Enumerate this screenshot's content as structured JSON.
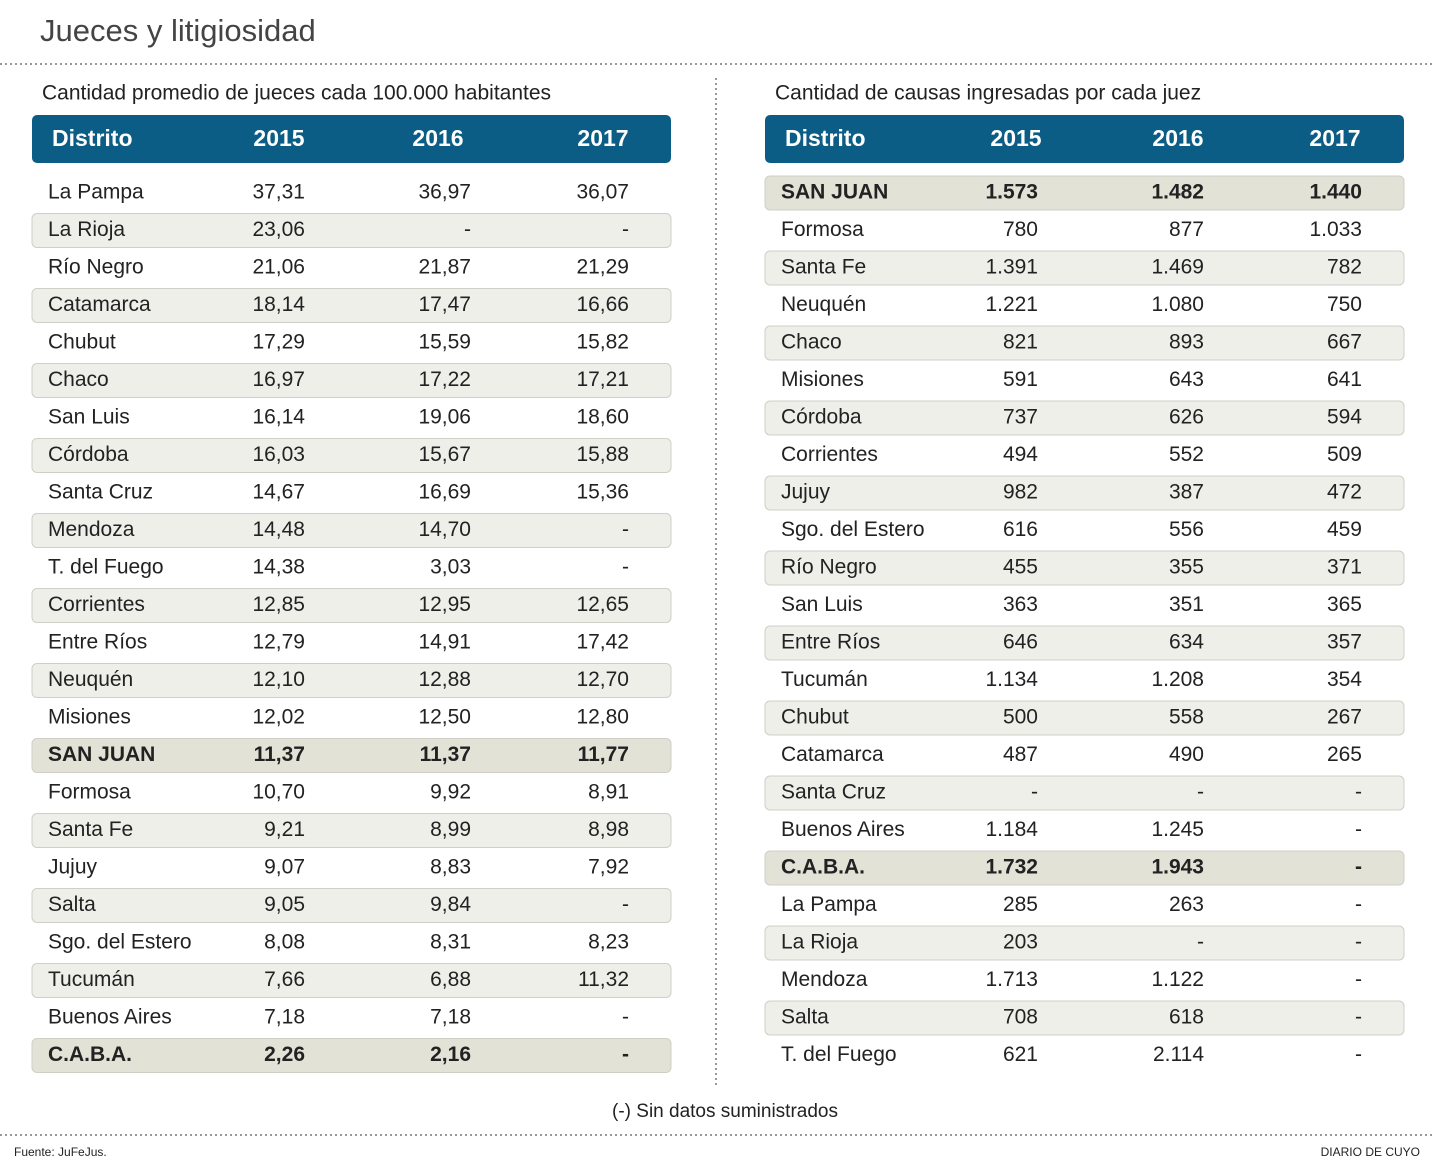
{
  "title": "Jueces y litigiosidad",
  "left": {
    "subtitle": "Cantidad promedio de jueces cada 100.000 habitantes",
    "header": [
      "Distrito",
      "2015",
      "2016",
      "2017"
    ],
    "rows": [
      [
        "La Pampa",
        "37,31",
        "36,97",
        "36,07"
      ],
      [
        "La Rioja",
        "23,06",
        "-",
        "-"
      ],
      [
        "Río Negro",
        "21,06",
        "21,87",
        "21,29"
      ],
      [
        "Catamarca",
        "18,14",
        "17,47",
        "16,66"
      ],
      [
        "Chubut",
        "17,29",
        "15,59",
        "15,82"
      ],
      [
        "Chaco",
        "16,97",
        "17,22",
        "17,21"
      ],
      [
        "San Luis",
        "16,14",
        "19,06",
        "18,60"
      ],
      [
        "Córdoba",
        "16,03",
        "15,67",
        "15,88"
      ],
      [
        "Santa Cruz",
        "14,67",
        "16,69",
        "15,36"
      ],
      [
        "Mendoza",
        "14,48",
        "14,70",
        "-"
      ],
      [
        "T. del Fuego",
        "14,38",
        "3,03",
        "-"
      ],
      [
        "Corrientes",
        "12,85",
        "12,95",
        "12,65"
      ],
      [
        "Entre Ríos",
        "12,79",
        "14,91",
        "17,42"
      ],
      [
        "Neuquén",
        "12,10",
        "12,88",
        "12,70"
      ],
      [
        "Misiones",
        "12,02",
        "12,50",
        "12,80"
      ],
      [
        "SAN JUAN",
        "11,37",
        "11,37",
        "11,77"
      ],
      [
        "Formosa",
        "10,70",
        "9,92",
        "8,91"
      ],
      [
        "Santa Fe",
        "9,21",
        "8,99",
        "8,98"
      ],
      [
        "Jujuy",
        "9,07",
        "8,83",
        "7,92"
      ],
      [
        "Salta",
        "9,05",
        "9,84",
        "-"
      ],
      [
        "Sgo. del Estero",
        "8,08",
        "8,31",
        "8,23"
      ],
      [
        "Tucumán",
        "7,66",
        "6,88",
        "11,32"
      ],
      [
        "Buenos Aires",
        "7,18",
        "7,18",
        "-"
      ],
      [
        "C.A.B.A.",
        "2,26",
        "2,16",
        "-"
      ]
    ]
  },
  "right": {
    "subtitle": "Cantidad de causas ingresadas por cada juez",
    "header": [
      "Distrito",
      "2015",
      "2016",
      "2017"
    ],
    "rows": [
      [
        "SAN JUAN",
        "1.573",
        "1.482",
        "1.440"
      ],
      [
        "Formosa",
        "780",
        "877",
        "1.033"
      ],
      [
        "Santa Fe",
        "1.391",
        "1.469",
        "782"
      ],
      [
        "Neuquén",
        "1.221",
        "1.080",
        "750"
      ],
      [
        "Chaco",
        "821",
        "893",
        "667"
      ],
      [
        "Misiones",
        "591",
        "643",
        "641"
      ],
      [
        "Córdoba",
        "737",
        "626",
        "594"
      ],
      [
        "Corrientes",
        "494",
        "552",
        "509"
      ],
      [
        "Jujuy",
        "982",
        "387",
        "472"
      ],
      [
        "Sgo. del Estero",
        "616",
        "556",
        "459"
      ],
      [
        "Río Negro",
        "455",
        "355",
        "371"
      ],
      [
        "San Luis",
        "363",
        "351",
        "365"
      ],
      [
        "Entre Ríos",
        "646",
        "634",
        "357"
      ],
      [
        "Tucumán",
        "1.134",
        "1.208",
        "354"
      ],
      [
        "Chubut",
        "500",
        "558",
        "267"
      ],
      [
        "Catamarca",
        "487",
        "490",
        "265"
      ],
      [
        "Santa Cruz",
        "-",
        "-",
        "-"
      ],
      [
        "Buenos Aires",
        "1.184",
        "1.245",
        "-"
      ],
      [
        "C.A.B.A.",
        "1.732",
        "1.943",
        "-"
      ],
      [
        "La Pampa",
        "285",
        "263",
        "-"
      ],
      [
        "La Rioja",
        "203",
        "-",
        "-"
      ],
      [
        "Mendoza",
        "1.713",
        "1.122",
        "-"
      ],
      [
        "Salta",
        "708",
        "618",
        "-"
      ],
      [
        "T. del Fuego",
        "621",
        "2.114",
        "-"
      ]
    ]
  },
  "note": "(-) Sin datos suministrados",
  "source": "Fuente: JuFeJus.",
  "brand": "DIARIO DE CUYO"
}
